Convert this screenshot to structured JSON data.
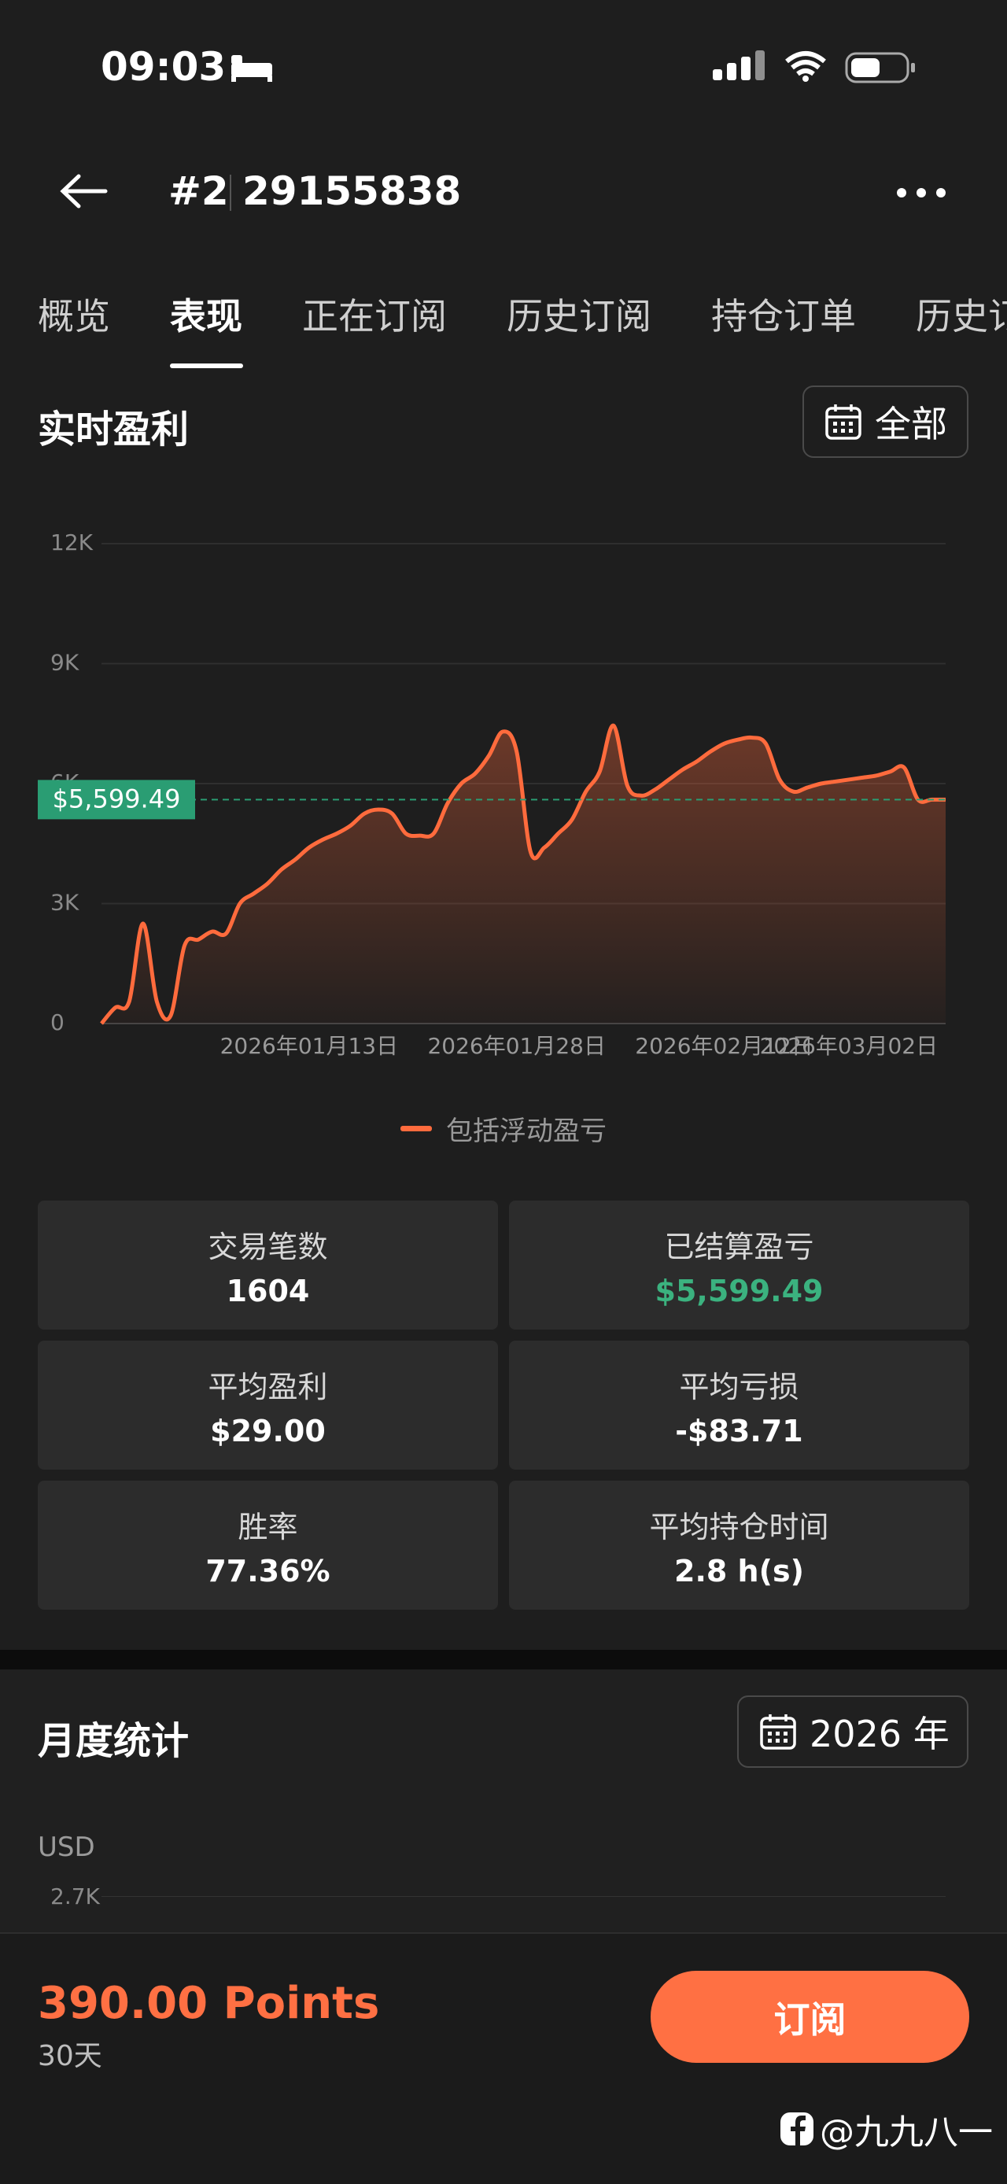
{
  "status_bar": {
    "time": "09:03"
  },
  "header": {
    "number": "#2",
    "account": "29155838"
  },
  "tabs": [
    "概览",
    "表现",
    "正在订阅",
    "历史订阅",
    "持仓订单",
    "历史订单"
  ],
  "section": {
    "title": "实时盈利",
    "filter": "全部"
  },
  "chart_data": {
    "type": "line",
    "categories": [
      null,
      null,
      null,
      null,
      null,
      null,
      null,
      null,
      null,
      null,
      null,
      null,
      null,
      null,
      null,
      "2026年01月13日",
      null,
      null,
      null,
      null,
      null,
      null,
      null,
      null,
      null,
      null,
      null,
      null,
      null,
      null,
      "2026年01月28日",
      null,
      null,
      null,
      null,
      null,
      null,
      null,
      null,
      null,
      null,
      null,
      null,
      null,
      null,
      "2026年02月12日",
      null,
      null,
      null,
      null,
      null,
      null,
      null,
      null,
      "2026年03月02日",
      null,
      null,
      null,
      null,
      null,
      null,
      null
    ],
    "series": [
      {
        "name": "包括浮动盈亏",
        "color": "#ff6b3d",
        "values": [
          0,
          400,
          550,
          2500,
          550,
          200,
          1950,
          2100,
          2300,
          2250,
          3000,
          3250,
          3500,
          3850,
          4100,
          4400,
          4600,
          4750,
          4950,
          5250,
          5350,
          5250,
          4750,
          4700,
          4750,
          5500,
          6000,
          6250,
          6700,
          7300,
          6800,
          4300,
          4400,
          4750,
          5100,
          5800,
          6300,
          7450,
          5950,
          5700,
          5850,
          6100,
          6350,
          6550,
          6800,
          7000,
          7100,
          7150,
          7000,
          6100,
          5800,
          5900,
          6000,
          6050,
          6100,
          6150,
          6200,
          6300,
          6400,
          5600,
          5600,
          5599.49
        ]
      }
    ],
    "ylim": [
      0,
      12000
    ],
    "yticks": [
      0,
      {
        "value": 3000,
        "label": "3K"
      },
      {
        "value": 6000,
        "label": "6K"
      },
      {
        "value": 9000,
        "label": "9K"
      },
      {
        "value": 12000,
        "label": "12K"
      }
    ],
    "grid": true,
    "reference": {
      "value": 5599.49,
      "label": "$5,599.49",
      "color": "#2a9d73"
    }
  },
  "stats": [
    {
      "label": "交易笔数",
      "value": "1604"
    },
    {
      "label": "已结算盈亏",
      "value": "$5,599.49"
    },
    {
      "label": "平均盈利",
      "value": "$29.00"
    },
    {
      "label": "平均亏损",
      "value": "-$83.71"
    },
    {
      "label": "胜率",
      "value": "77.36%"
    },
    {
      "label": "平均持仓时间",
      "value": "2.8 h(s)"
    }
  ],
  "monthly": {
    "title": "月度统计",
    "year": "2026 年",
    "unit": "USD",
    "tick": "2.7K"
  },
  "footer": {
    "price": "390.00 Points",
    "period": "30天",
    "button": "订阅"
  },
  "watermark": "@九九八一"
}
